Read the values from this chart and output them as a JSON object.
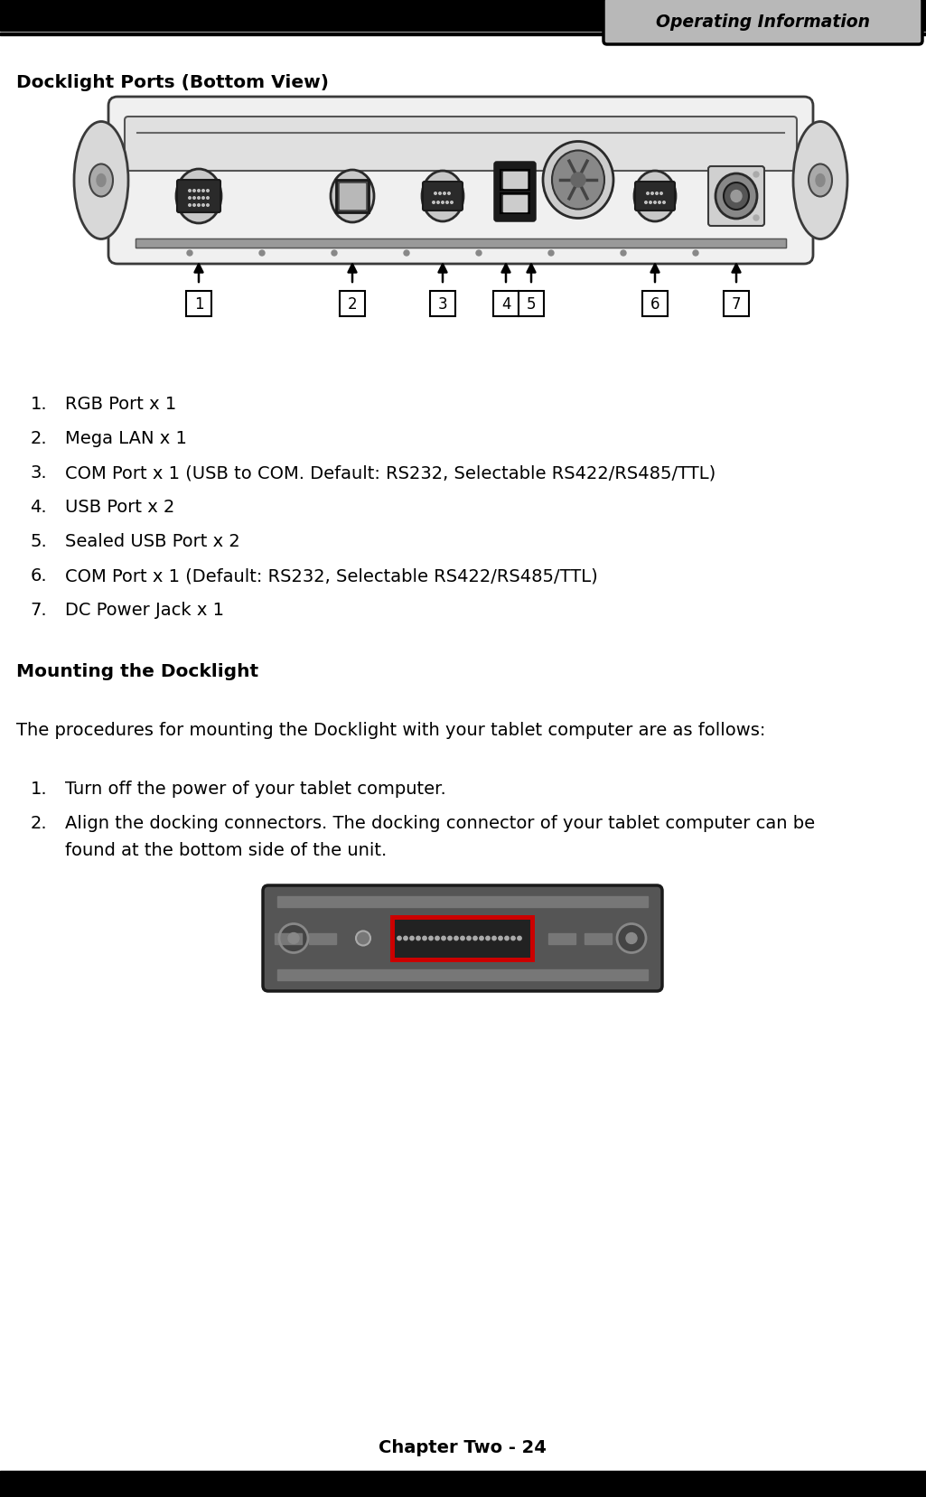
{
  "page_title_box": "Operating Information",
  "section_title": "Docklight Ports (Bottom View)",
  "items": [
    [
      "1.",
      "RGB Port x 1"
    ],
    [
      "2.",
      "Mega LAN x 1"
    ],
    [
      "3.",
      "COM Port x 1 (USB to COM. Default: RS232, Selectable RS422/RS485/TTL)"
    ],
    [
      "4.",
      "USB Port x 2"
    ],
    [
      "5.",
      "Sealed USB Port x 2"
    ],
    [
      "6.",
      "COM Port x 1 (Default: RS232, Selectable RS422/RS485/TTL)"
    ],
    [
      "7.",
      "DC Power Jack x 1"
    ]
  ],
  "mounting_title": "Mounting the Docklight",
  "mounting_intro": "The procedures for mounting the Docklight with your tablet computer are as follows:",
  "step1": "Turn off the power of your tablet computer.",
  "step2a": "Align the docking connectors. The docking connector of your tablet computer can be",
  "step2b": "found at the bottom side of the unit.",
  "footer_text": "Chapter Two - 24",
  "bg_color": "#ffffff",
  "text_color": "#000000",
  "arrow_numbers": [
    "1",
    "2",
    "3",
    "4",
    "5",
    "6",
    "7"
  ],
  "header_box_fill": "#b8b8b8",
  "header_box_edge": "#000000"
}
